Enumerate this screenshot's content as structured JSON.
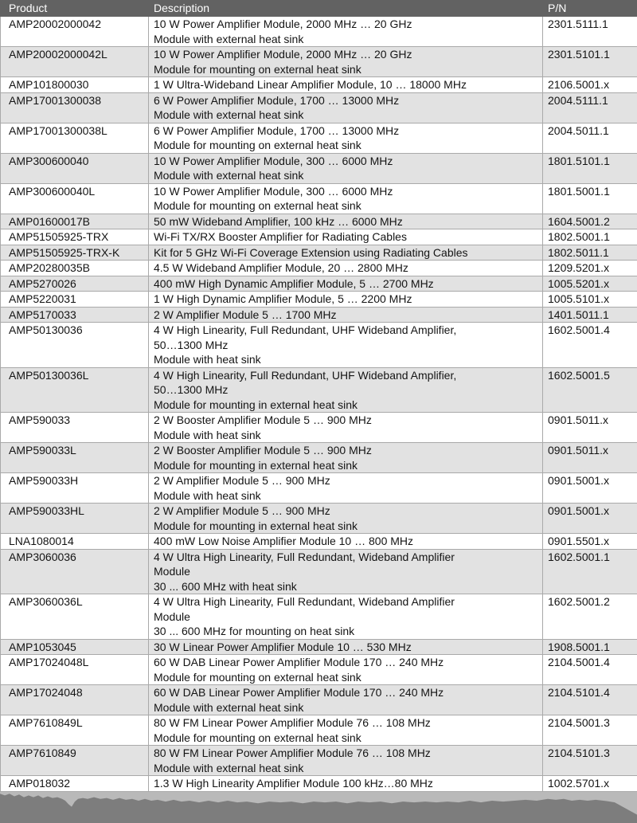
{
  "colors": {
    "header_bg": "#626262",
    "header_fg": "#ffffff",
    "stripe": "#e2e2e2",
    "border": "#a9a9a9",
    "torn_light": "#b9b9b9",
    "torn_dark": "#7d7d7d"
  },
  "table": {
    "columns": [
      {
        "label": "Product"
      },
      {
        "label": "Description"
      },
      {
        "label": "P/N"
      }
    ],
    "rows": [
      {
        "product": "AMP20002000042",
        "description_lines": [
          "10 W Power Amplifier Module, 2000 MHz … 20 GHz",
          "Module with external heat sink"
        ],
        "pn": "2301.5111.1"
      },
      {
        "product": "AMP20002000042L",
        "description_lines": [
          "10 W Power Amplifier Module, 2000 MHz … 20 GHz",
          "Module for mounting on external heat sink"
        ],
        "pn": "2301.5101.1"
      },
      {
        "product": "AMP101800030",
        "description_lines": [
          "1 W Ultra-Wideband Linear Amplifier Module, 10 … 18000 MHz"
        ],
        "pn": "2106.5001.x"
      },
      {
        "product": "AMP17001300038",
        "description_lines": [
          "6 W Power Amplifier Module, 1700 … 13000 MHz",
          "Module with external heat sink"
        ],
        "pn": "2004.5111.1"
      },
      {
        "product": "AMP17001300038L",
        "description_lines": [
          "6 W Power Amplifier Module, 1700 … 13000 MHz",
          "Module for mounting on external heat sink"
        ],
        "pn": "2004.5011.1"
      },
      {
        "product": "AMP300600040",
        "description_lines": [
          "10 W Power Amplifier Module, 300 … 6000 MHz",
          "Module with external heat sink"
        ],
        "pn": "1801.5101.1"
      },
      {
        "product": "AMP300600040L",
        "description_lines": [
          "10 W Power Amplifier Module, 300 … 6000 MHz",
          "Module for mounting on external heat sink"
        ],
        "pn": "1801.5001.1"
      },
      {
        "product": "AMP01600017B",
        "description_lines": [
          "50 mW Wideband Amplifier, 100 kHz … 6000 MHz"
        ],
        "pn": "1604.5001.2"
      },
      {
        "product": "AMP51505925-TRX",
        "description_lines": [
          "Wi-Fi TX/RX Booster Amplifier for Radiating Cables"
        ],
        "pn": "1802.5001.1"
      },
      {
        "product": "AMP51505925-TRX-K",
        "description_lines": [
          "Kit for 5 GHz Wi-Fi Coverage Extension using Radiating Cables"
        ],
        "pn": "1802.5011.1"
      },
      {
        "product": "AMP20280035B",
        "description_lines": [
          "4.5 W Wideband Amplifier Module, 20 … 2800 MHz"
        ],
        "pn": "1209.5201.x"
      },
      {
        "product": "AMP5270026",
        "description_lines": [
          "400 mW High Dynamic Amplifier Module, 5 … 2700 MHz"
        ],
        "pn": "1005.5201.x"
      },
      {
        "product": "AMP5220031",
        "description_lines": [
          "1 W High Dynamic Amplifier Module, 5 … 2200 MHz"
        ],
        "pn": "1005.5101.x"
      },
      {
        "product": "AMP5170033",
        "description_lines": [
          "2 W Amplifier Module 5 … 1700 MHz"
        ],
        "pn": "1401.5011.1"
      },
      {
        "product": "AMP50130036",
        "description_lines": [
          "4 W High Linearity, Full Redundant, UHF Wideband Amplifier,",
          "50…1300 MHz",
          "Module with heat sink"
        ],
        "pn": "1602.5001.4"
      },
      {
        "product": "AMP50130036L",
        "description_lines": [
          "4 W High Linearity, Full Redundant, UHF Wideband Amplifier,",
          "50…1300 MHz",
          "Module for mounting in external heat sink"
        ],
        "pn": "1602.5001.5"
      },
      {
        "product": "AMP590033",
        "description_lines": [
          "2 W Booster Amplifier Module 5 … 900 MHz",
          "Module with heat sink"
        ],
        "pn": "0901.5011.x"
      },
      {
        "product": "AMP590033L",
        "description_lines": [
          "2 W Booster Amplifier Module 5 … 900 MHz",
          "Module for mounting in external heat sink"
        ],
        "pn": "0901.5011.x"
      },
      {
        "product": "AMP590033H",
        "description_lines": [
          "2 W Amplifier Module 5 … 900 MHz",
          "Module with heat sink"
        ],
        "pn": "0901.5001.x"
      },
      {
        "product": "AMP590033HL",
        "description_lines": [
          "2 W Amplifier Module 5 … 900 MHz",
          "Module for mounting in external heat sink"
        ],
        "pn": "0901.5001.x"
      },
      {
        "product": "LNA1080014",
        "description_lines": [
          "400 mW Low Noise Amplifier Module 10 … 800 MHz"
        ],
        "pn": "0901.5501.x"
      },
      {
        "product": "AMP3060036",
        "description_lines": [
          "4 W Ultra High Linearity, Full Redundant, Wideband Amplifier",
          "Module",
          "30 ... 600 MHz with heat sink"
        ],
        "pn": "1602.5001.1"
      },
      {
        "product": "AMP3060036L",
        "description_lines": [
          "4 W Ultra High Linearity, Full Redundant, Wideband Amplifier",
          "Module",
          "30 ... 600 MHz for mounting on heat sink"
        ],
        "pn": "1602.5001.2"
      },
      {
        "product": "AMP1053045",
        "description_lines": [
          "30 W Linear Power Amplifier Module 10 … 530 MHz"
        ],
        "pn": "1908.5001.1"
      },
      {
        "product": "AMP17024048L",
        "description_lines": [
          "60 W DAB Linear Power Amplifier Module 170 … 240 MHz",
          "Module for mounting on external heat sink"
        ],
        "pn": "2104.5001.4"
      },
      {
        "product": "AMP17024048",
        "description_lines": [
          "60 W DAB Linear Power Amplifier Module 170 … 240 MHz",
          "Module with external heat sink"
        ],
        "pn": "2104.5101.4"
      },
      {
        "product": "AMP7610849L",
        "description_lines": [
          "80 W FM Linear Power Amplifier Module 76 … 108 MHz",
          "Module for mounting on external heat sink"
        ],
        "pn": "2104.5001.3"
      },
      {
        "product": "AMP7610849",
        "description_lines": [
          "80 W FM Linear Power Amplifier Module 76 … 108 MHz",
          "Module with external heat sink"
        ],
        "pn": "2104.5101.3"
      },
      {
        "product": "AMP018032",
        "description_lines": [
          "1.3 W High Linearity Amplifier Module 100 kHz…80 MHz"
        ],
        "pn": "1002.5701.x"
      }
    ]
  }
}
